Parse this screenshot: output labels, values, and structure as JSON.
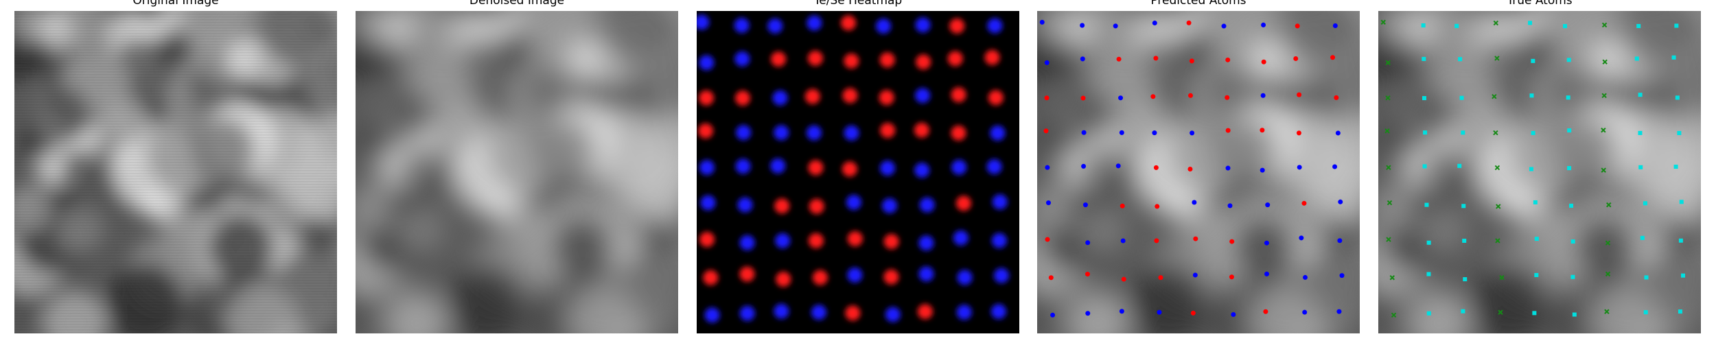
{
  "panels": [
    {
      "title": "Original Image"
    },
    {
      "title": "Denoised Image"
    },
    {
      "title": "Te/Se Heatmap"
    },
    {
      "title": "Predicted Atoms"
    },
    {
      "title": "True Atoms"
    }
  ]
}
